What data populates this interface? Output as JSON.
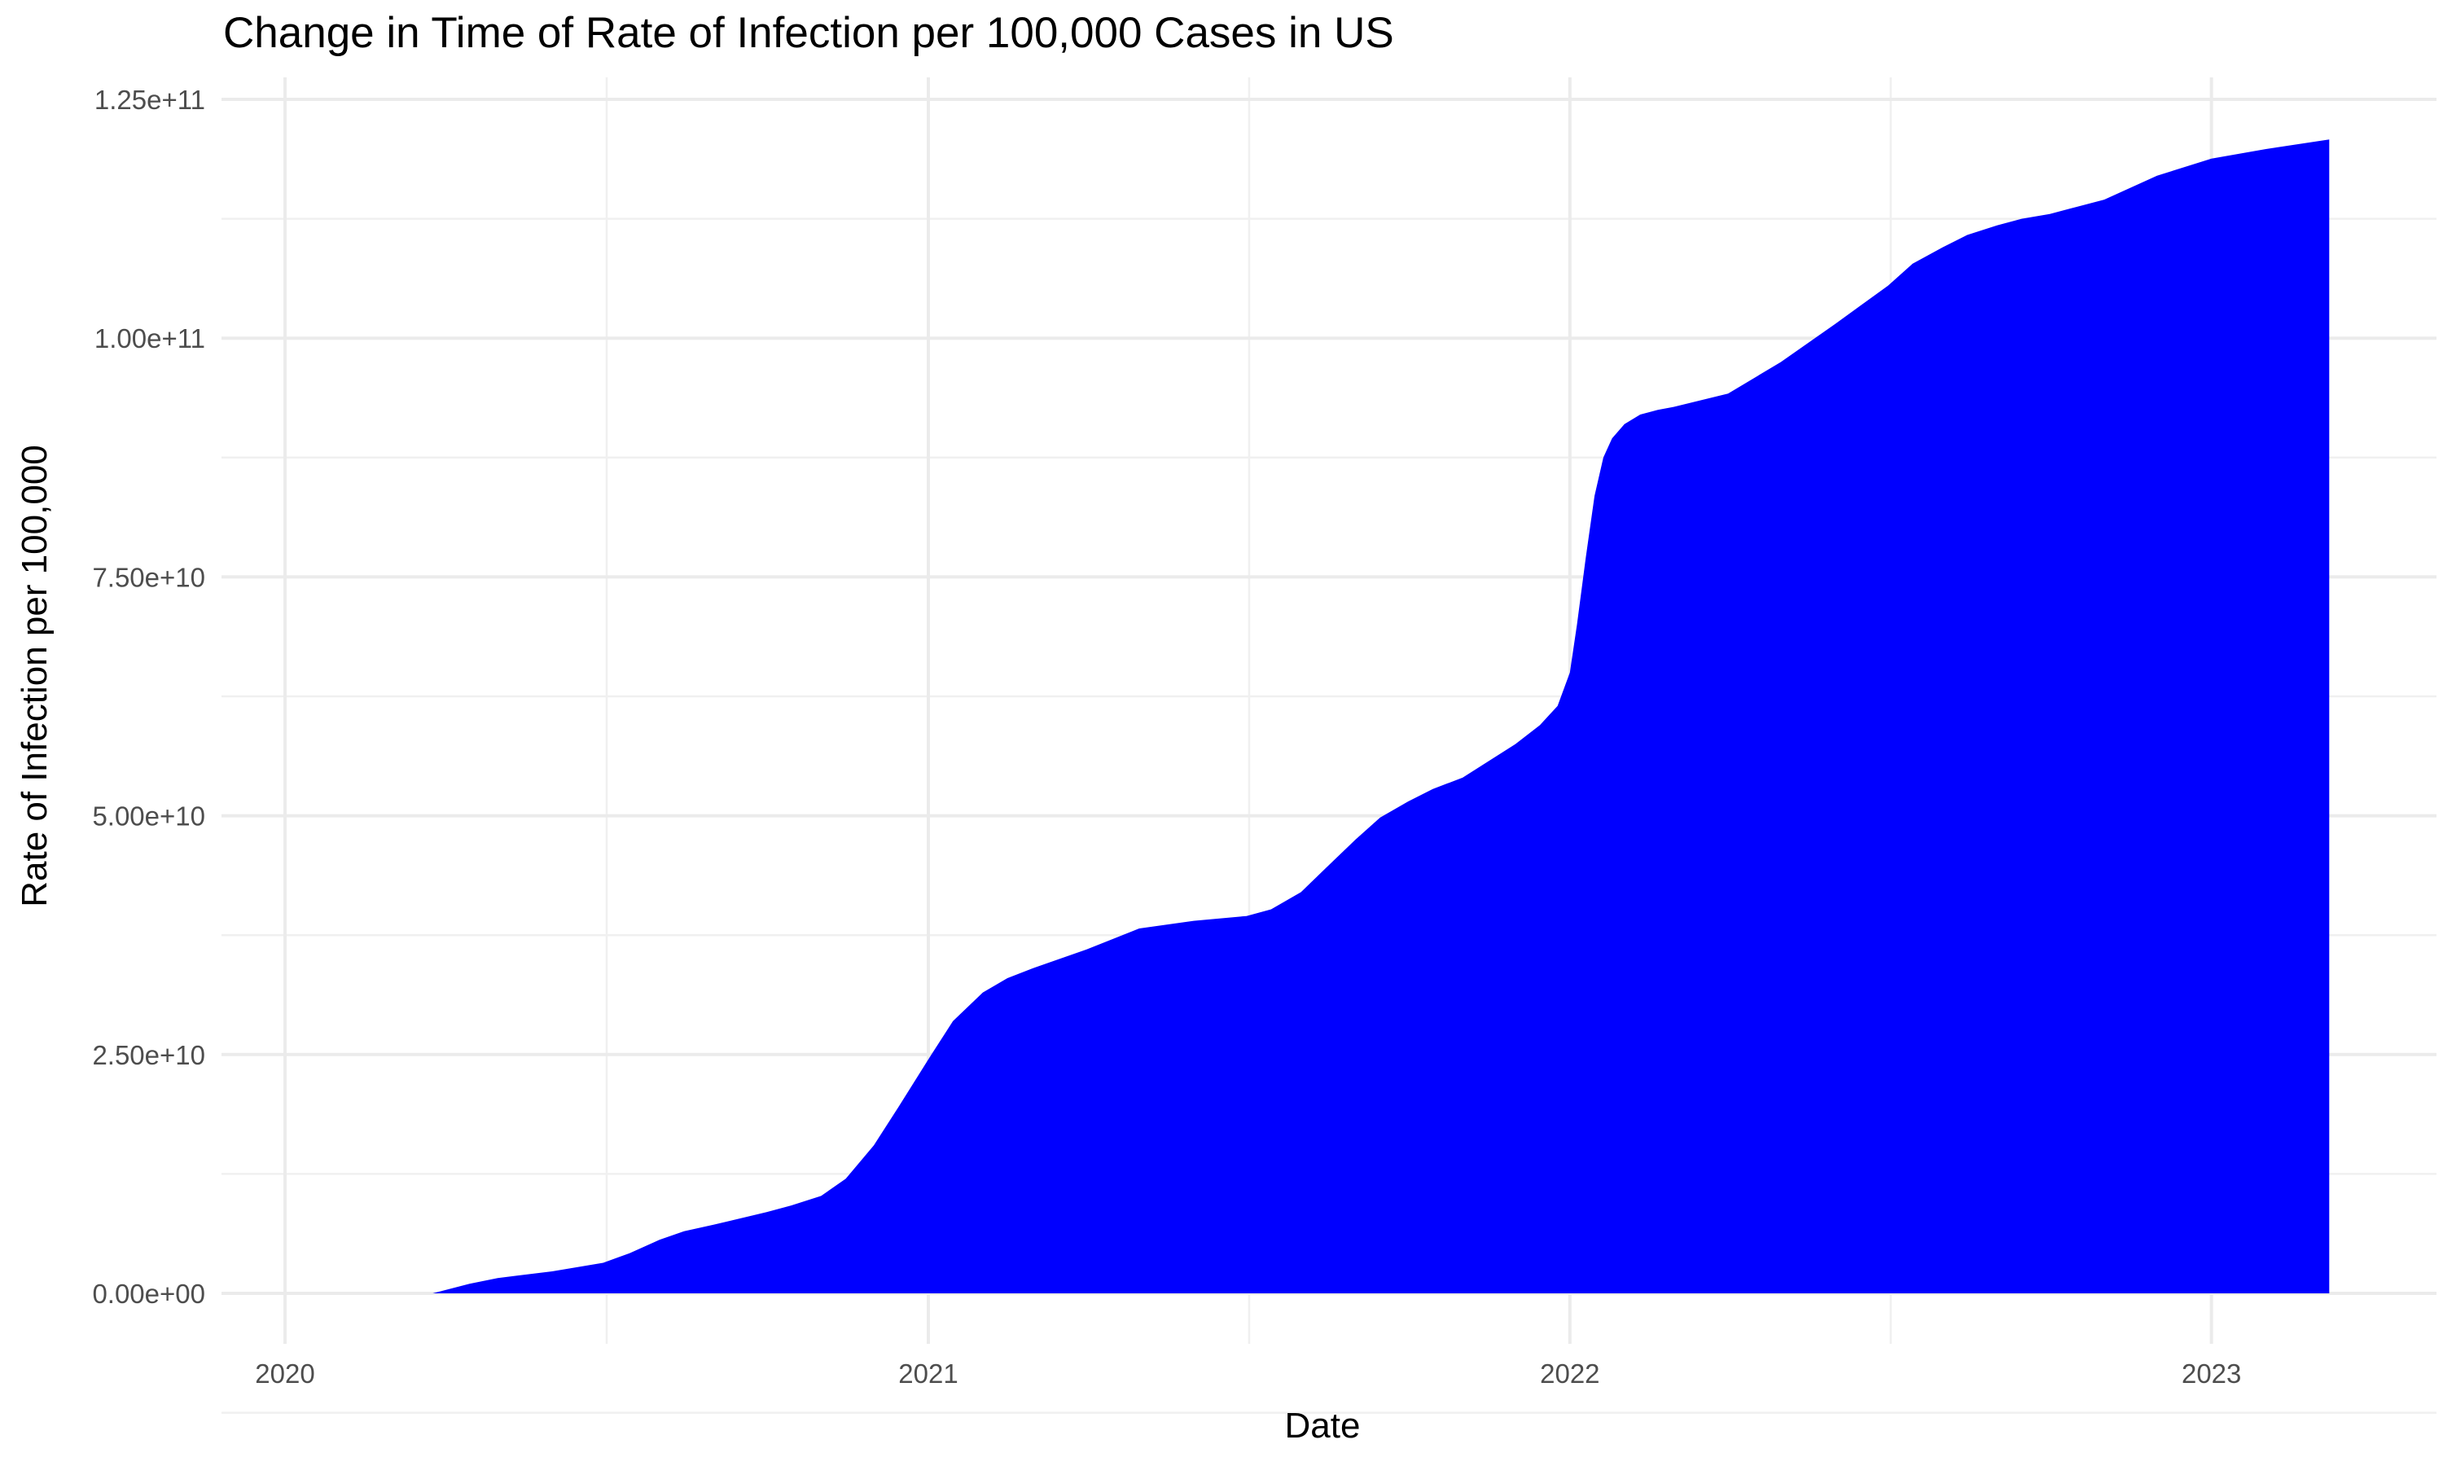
{
  "chart_data": {
    "type": "area",
    "title": "Change in Time of Rate of Infection per 100,000 Cases in US",
    "xlabel": "Date",
    "ylabel": "Rate of Infection per 100,000",
    "x_ticks": [
      "2020",
      "2021",
      "2022",
      "2023"
    ],
    "y_ticks": [
      "0.00e+00",
      "2.50e+10",
      "5.00e+10",
      "7.50e+10",
      "1.00e+11",
      "1.25e+11"
    ],
    "ylim": [
      0,
      125000000000
    ],
    "xlim": [
      "2019-11-20",
      "2023-05-10"
    ],
    "grid": true,
    "fill_color": "#0000ff",
    "series": [
      {
        "x": [
          "2020-01-22",
          "2020-03-01",
          "2020-03-25",
          "2020-04-15",
          "2020-05-01",
          "2020-06-01",
          "2020-06-30",
          "2020-07-15",
          "2020-08-01",
          "2020-08-15",
          "2020-09-01",
          "2020-10-01",
          "2020-10-15",
          "2020-11-01",
          "2020-11-15",
          "2020-12-01",
          "2020-12-15",
          "2021-01-01",
          "2021-01-15",
          "2021-02-01",
          "2021-02-15",
          "2021-03-01",
          "2021-04-01",
          "2021-05-01",
          "2021-06-01",
          "2021-07-01",
          "2021-07-15",
          "2021-08-01",
          "2021-08-15",
          "2021-09-01",
          "2021-09-15",
          "2021-10-01",
          "2021-10-15",
          "2021-11-01",
          "2021-12-01",
          "2021-12-15",
          "2021-12-25",
          "2022-01-01",
          "2022-01-05",
          "2022-01-10",
          "2022-01-15",
          "2022-01-20",
          "2022-01-25",
          "2022-02-01",
          "2022-02-10",
          "2022-02-20",
          "2022-03-01",
          "2022-04-01",
          "2022-05-01",
          "2022-06-01",
          "2022-07-01",
          "2022-07-15",
          "2022-08-01",
          "2022-08-15",
          "2022-09-01",
          "2022-09-15",
          "2022-10-01",
          "2022-11-01",
          "2022-12-01",
          "2023-01-01",
          "2023-02-01",
          "2023-03-09"
        ],
        "y": [
          0,
          0,
          0,
          1000000000,
          1600000000,
          2300000000,
          3200000000,
          4200000000,
          5600000000,
          6500000000,
          7200000000,
          8500000000,
          9200000000,
          10200000000,
          12000000000,
          15500000000,
          19500000000,
          24500000000,
          28500000000,
          31500000000,
          33000000000,
          34000000000,
          36000000000,
          38200000000,
          39000000000,
          39500000000,
          40200000000,
          42000000000,
          44500000000,
          47500000000,
          49800000000,
          51500000000,
          52800000000,
          54000000000,
          57500000000,
          59500000000,
          61500000000,
          65000000000,
          70000000000,
          77000000000,
          83500000000,
          87500000000,
          89500000000,
          91000000000,
          92000000000,
          92500000000,
          92800000000,
          94200000000,
          97500000000,
          101500000000,
          105500000000,
          107800000000,
          109500000000,
          110800000000,
          111800000000,
          112500000000,
          113000000000,
          114500000000,
          117000000000,
          118800000000,
          119800000000,
          120800000000
        ]
      }
    ]
  }
}
